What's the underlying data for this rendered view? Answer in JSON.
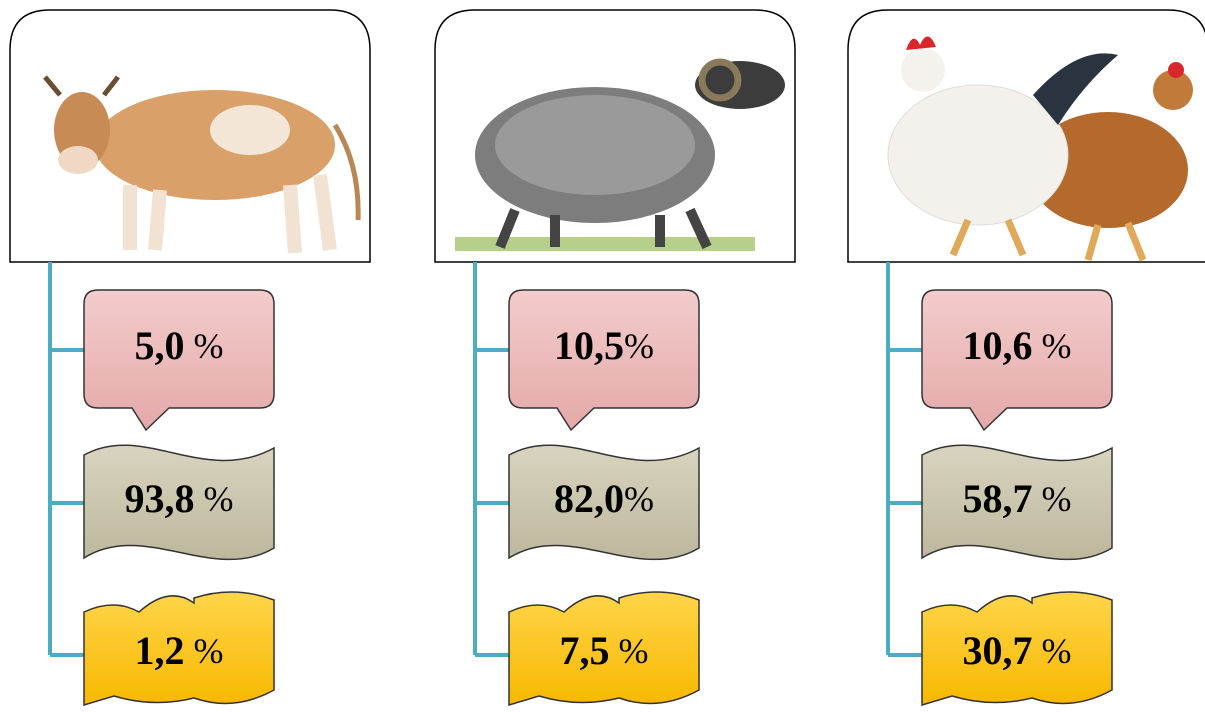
{
  "columns": [
    {
      "items": [
        {
          "value": "5,0",
          "unit": " %"
        },
        {
          "value": "93,8",
          "unit": " %"
        },
        {
          "value": "1,2",
          "unit": " %"
        }
      ]
    },
    {
      "items": [
        {
          "value": "10,5",
          "unit": "%"
        },
        {
          "value": "82,0",
          "unit": "%"
        },
        {
          "value": "7,5",
          "unit": " %"
        }
      ]
    },
    {
      "items": [
        {
          "value": "10,6",
          "unit": " %"
        },
        {
          "value": "58,7",
          "unit": " %"
        },
        {
          "value": "30,7",
          "unit": " %"
        }
      ]
    }
  ]
}
